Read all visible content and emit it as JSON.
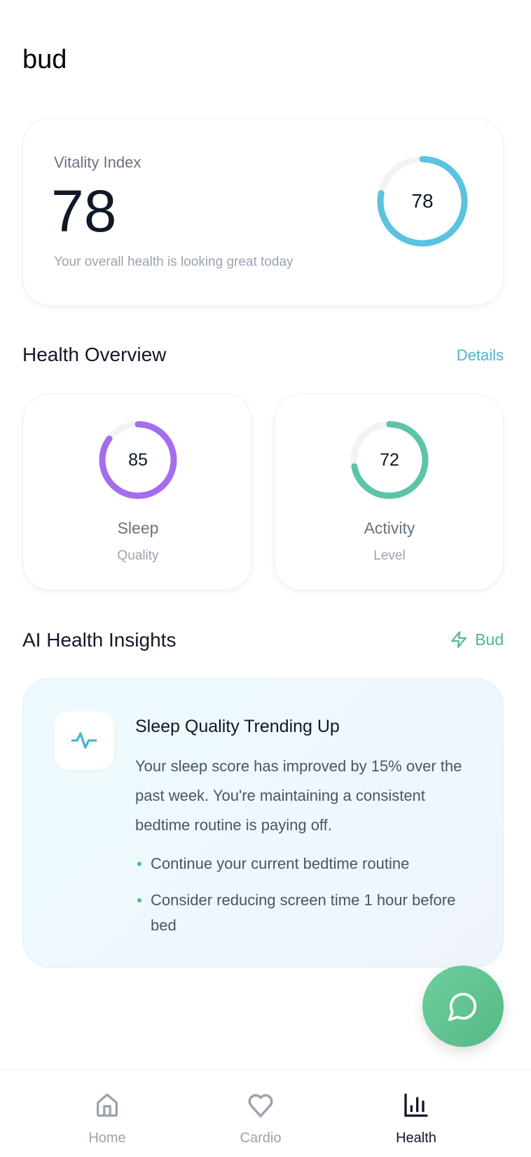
{
  "app": {
    "title": "bud"
  },
  "vitality": {
    "label": "Vitality Index",
    "value": "78",
    "subtitle": "Your overall health is looking great today",
    "gauge_value": "78",
    "percent": 78,
    "color": "#5bc3e0"
  },
  "overview": {
    "title": "Health Overview",
    "details_link": "Details",
    "cards": [
      {
        "value": "85",
        "percent": 85,
        "label": "Sleep",
        "sublabel": "Quality",
        "color": "#a56ded"
      },
      {
        "value": "72",
        "percent": 72,
        "label": "Activity",
        "sublabel": "Level",
        "color": "#5cc4a8"
      }
    ]
  },
  "insights": {
    "title": "AI Health Insights",
    "badge": "Bud",
    "badge_icon": "lightning-icon",
    "card": {
      "icon": "activity-pulse-icon",
      "title": "Sleep Quality Trending Up",
      "body": "Your sleep score has improved by 15% over the past week. You're maintaining a consistent bedtime routine is paying off.",
      "bullets": [
        "Continue your current bedtime routine",
        "Consider reducing screen time 1 hour before bed"
      ]
    }
  },
  "fab": {
    "icon": "chat-bubble-icon",
    "color": "#5fc08e"
  },
  "nav": [
    {
      "label": "Home",
      "icon": "home-icon"
    },
    {
      "label": "Cardio",
      "icon": "heart-icon"
    },
    {
      "label": "Health",
      "icon": "bar-chart-icon",
      "active": true
    }
  ]
}
